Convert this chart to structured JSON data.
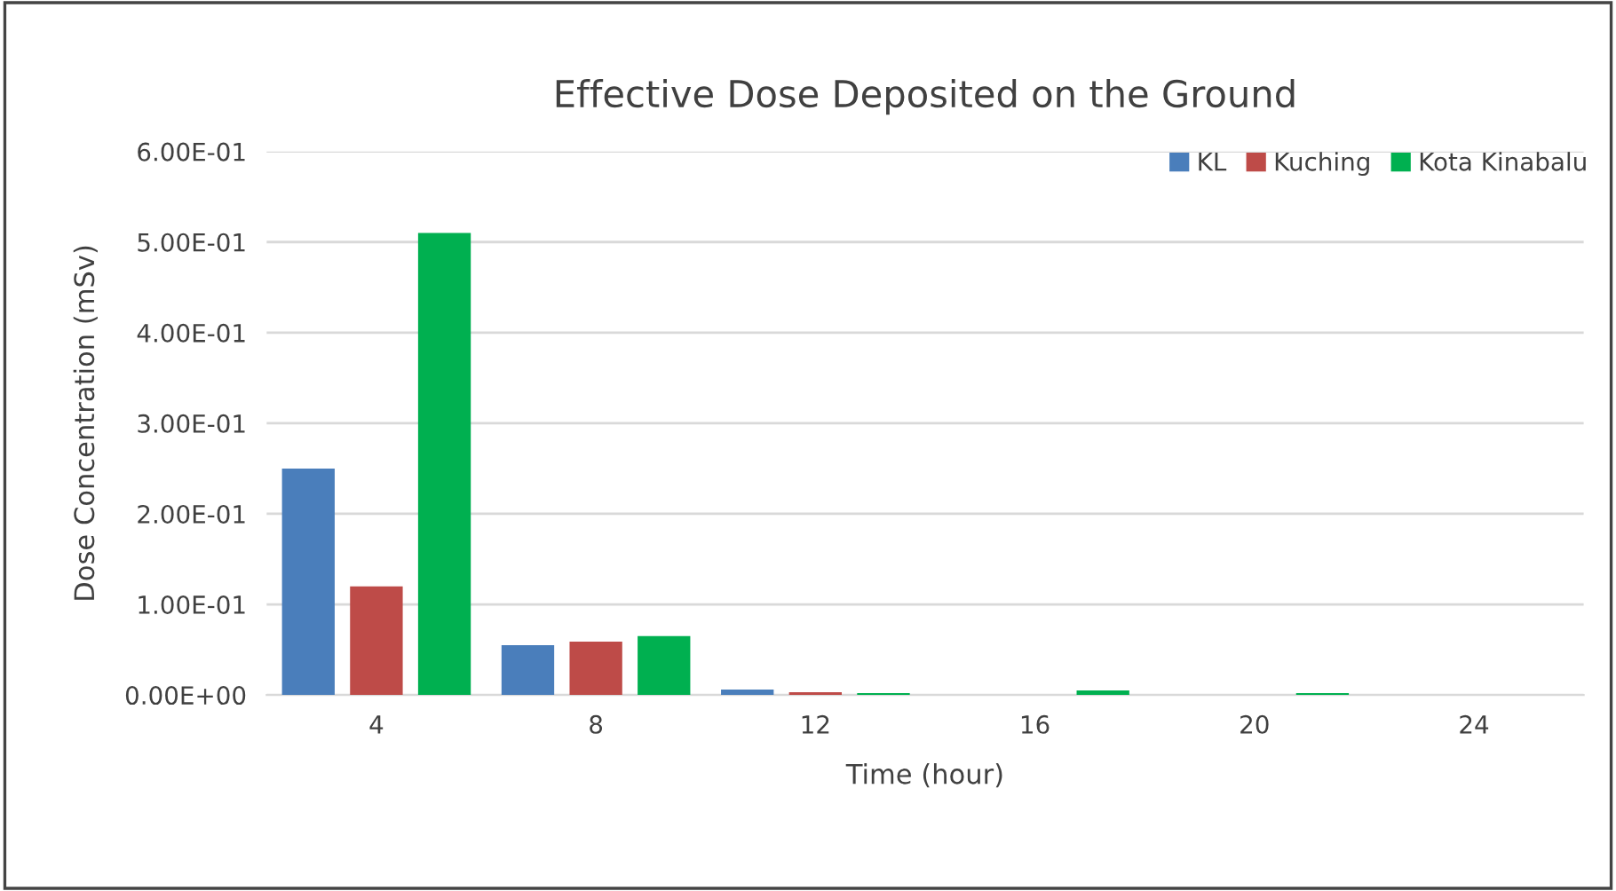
{
  "chart_data": {
    "type": "bar",
    "title": "Effective Dose Deposited on the Ground",
    "xlabel": "Time (hour)",
    "ylabel": "Dose Concentration (mSv)",
    "categories": [
      "4",
      "8",
      "12",
      "16",
      "20",
      "24"
    ],
    "series": [
      {
        "name": "KL",
        "color": "#4a7ebb",
        "values": [
          0.25,
          0.055,
          0.006,
          0,
          0,
          0
        ]
      },
      {
        "name": "Kuching",
        "color": "#be4b48",
        "values": [
          0.12,
          0.059,
          0.003,
          0,
          0,
          0
        ]
      },
      {
        "name": "Kota Kinabalu",
        "color": "#00b050",
        "values": [
          0.51,
          0.065,
          0.002,
          0.005,
          0.002,
          0
        ]
      }
    ],
    "ylim": [
      0,
      0.6
    ],
    "yticks": [
      {
        "value": 0,
        "label": "0.00E+00"
      },
      {
        "value": 0.1,
        "label": "1.00E-01"
      },
      {
        "value": 0.2,
        "label": "2.00E-01"
      },
      {
        "value": 0.3,
        "label": "3.00E-01"
      },
      {
        "value": 0.4,
        "label": "4.00E-01"
      },
      {
        "value": 0.5,
        "label": "5.00E-01"
      },
      {
        "value": 0.6,
        "label": "6.00E-01"
      }
    ],
    "grid": "y",
    "legend": "top right"
  }
}
